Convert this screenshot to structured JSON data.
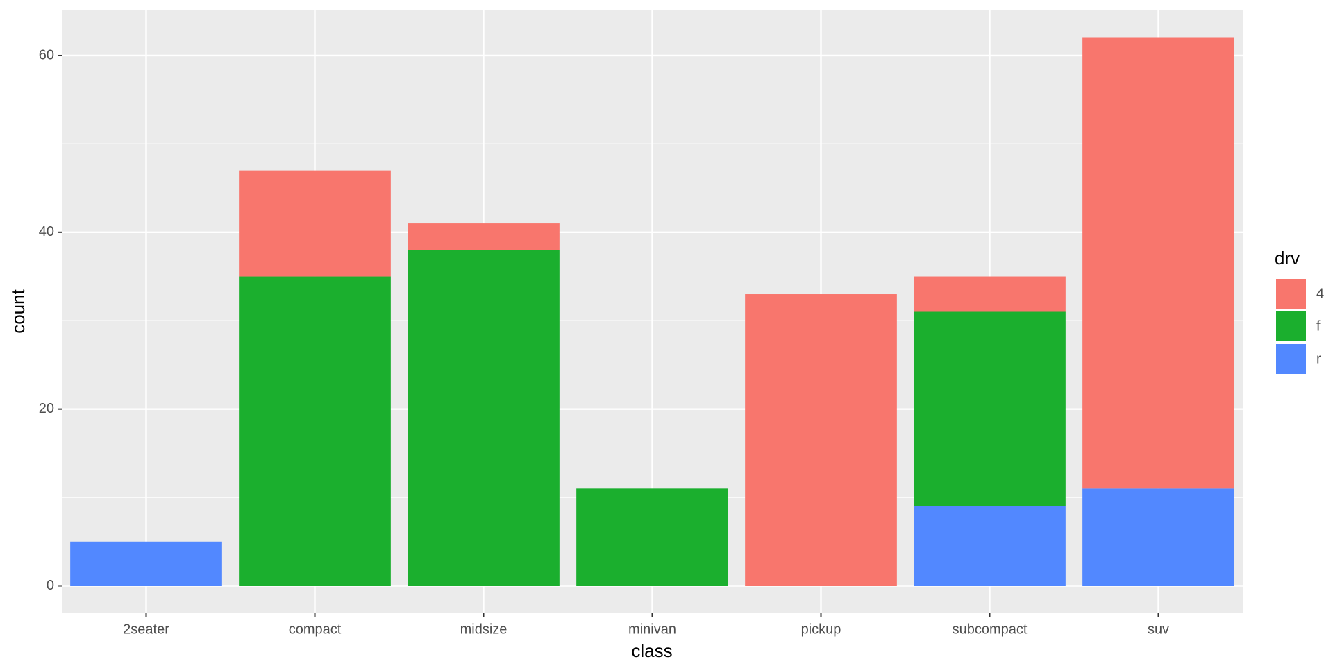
{
  "chart_data": {
    "type": "stacked_bar",
    "x_label": "class",
    "y_label": "count",
    "legend_title": "drv",
    "categories": [
      "2seater",
      "compact",
      "midsize",
      "minivan",
      "pickup",
      "subcompact",
      "suv"
    ],
    "series": [
      {
        "name": "4",
        "color": "#f8766d",
        "values": [
          0,
          12,
          3,
          0,
          33,
          4,
          51
        ]
      },
      {
        "name": "f",
        "color": "#1baf2e",
        "values": [
          0,
          35,
          38,
          11,
          0,
          22,
          0
        ]
      },
      {
        "name": "r",
        "color": "#5288ff",
        "values": [
          5,
          0,
          0,
          0,
          0,
          9,
          11
        ]
      }
    ],
    "ylim": [
      -3.1,
      65.1
    ],
    "yticks": [
      0,
      20,
      40,
      60
    ],
    "grid": true
  }
}
